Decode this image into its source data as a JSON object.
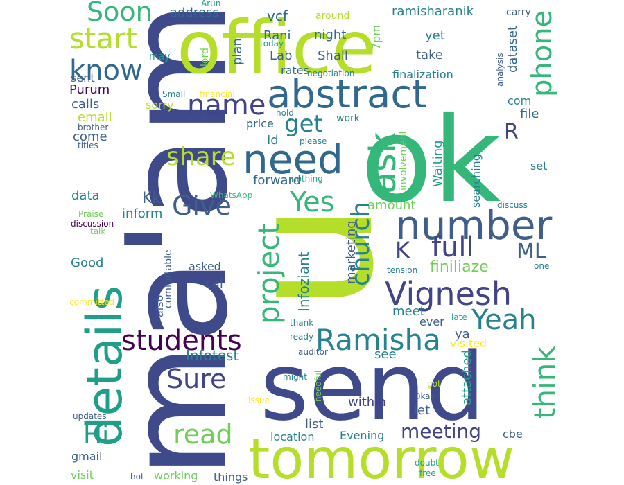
{
  "palette": {
    "navy": "#3e4a89",
    "indigo": "#414487",
    "purple": "#440154",
    "blue": "#31688e",
    "teal": "#26828e",
    "teal2": "#1f9e89",
    "green": "#35b779",
    "lgreen": "#6ece58",
    "lime": "#b5de2b",
    "yellow": "#fde725",
    "slate": "#3f5f8a"
  },
  "words": [
    {
      "text": "ma'am",
      "color": "navy"
    },
    {
      "text": "u",
      "color": "lime"
    },
    {
      "text": "ok",
      "color": "green"
    },
    {
      "text": "office",
      "color": "lime"
    },
    {
      "text": "send",
      "color": "navy"
    },
    {
      "text": "tomorrow",
      "color": "lime"
    },
    {
      "text": "details",
      "color": "teal2"
    },
    {
      "text": "abstract",
      "color": "blue"
    },
    {
      "text": "need",
      "color": "blue"
    },
    {
      "text": "number",
      "color": "slate"
    },
    {
      "text": "Vignesh",
      "color": "indigo"
    },
    {
      "text": "ask",
      "color": "green"
    },
    {
      "text": "Ramisha",
      "color": "teal"
    },
    {
      "text": "project",
      "color": "green"
    },
    {
      "text": "Soon",
      "color": "green"
    },
    {
      "text": "start",
      "color": "lime"
    },
    {
      "text": "know",
      "color": "blue"
    },
    {
      "text": "name",
      "color": "indigo"
    },
    {
      "text": "share",
      "color": "lime"
    },
    {
      "text": "Give",
      "color": "slate"
    },
    {
      "text": "Yes",
      "color": "green"
    },
    {
      "text": "church",
      "color": "teal"
    },
    {
      "text": "full",
      "color": "indigo"
    },
    {
      "text": "students",
      "color": "purple"
    },
    {
      "text": "Yeah",
      "color": "teal"
    },
    {
      "text": "phone",
      "color": "green"
    },
    {
      "text": "think",
      "color": "green"
    },
    {
      "text": "ML",
      "color": "slate"
    },
    {
      "text": "K",
      "color": "indigo"
    },
    {
      "text": "R",
      "color": "indigo"
    },
    {
      "text": "get",
      "color": "teal"
    },
    {
      "text": "Sure",
      "color": "indigo"
    },
    {
      "text": "Hi",
      "color": "teal2"
    },
    {
      "text": "read",
      "color": "lgreen"
    },
    {
      "text": "meeting",
      "color": "indigo"
    },
    {
      "text": "finiliaze",
      "color": "lgreen"
    },
    {
      "text": "Infoziant",
      "color": "teal"
    },
    {
      "text": "Infotest",
      "color": "teal"
    },
    {
      "text": "marketing",
      "color": "slate"
    },
    {
      "text": "address",
      "color": "blue"
    },
    {
      "text": "vcf",
      "color": "blue"
    },
    {
      "text": "7pm",
      "color": "lgreen"
    },
    {
      "text": "ramisharanik",
      "color": "teal"
    },
    {
      "text": "carry",
      "color": "slate"
    },
    {
      "text": "Arun",
      "color": "teal2"
    },
    {
      "text": "around",
      "color": "lime"
    },
    {
      "text": "Rani",
      "color": "blue"
    },
    {
      "text": "night",
      "color": "blue"
    },
    {
      "text": "yet",
      "color": "teal"
    },
    {
      "text": "dataset",
      "color": "blue"
    },
    {
      "text": "Lab",
      "color": "slate"
    },
    {
      "text": "Shall",
      "color": "slate"
    },
    {
      "text": "take",
      "color": "slate"
    },
    {
      "text": "may",
      "color": "teal2"
    },
    {
      "text": "lord",
      "color": "lgreen"
    },
    {
      "text": "today",
      "color": "teal2"
    },
    {
      "text": "plan",
      "color": "blue"
    },
    {
      "text": "analysis",
      "color": "slate"
    },
    {
      "text": "sent",
      "color": "slate"
    },
    {
      "text": "rates",
      "color": "blue"
    },
    {
      "text": "negotiation",
      "color": "teal"
    },
    {
      "text": "finalization",
      "color": "teal"
    },
    {
      "text": "Purum",
      "color": "purple"
    },
    {
      "text": "Small",
      "color": "teal"
    },
    {
      "text": "financial",
      "color": "yellow"
    },
    {
      "text": "calls",
      "color": "slate"
    },
    {
      "text": "sorry",
      "color": "lime"
    },
    {
      "text": "com",
      "color": "teal"
    },
    {
      "text": "email",
      "color": "lime"
    },
    {
      "text": "hold",
      "color": "teal"
    },
    {
      "text": "work",
      "color": "teal"
    },
    {
      "text": "file",
      "color": "blue"
    },
    {
      "text": "price",
      "color": "blue"
    },
    {
      "text": "brother",
      "color": "slate"
    },
    {
      "text": "come",
      "color": "slate"
    },
    {
      "text": "Id",
      "color": "teal"
    },
    {
      "text": "please",
      "color": "teal"
    },
    {
      "text": "involvement",
      "color": "lgreen"
    },
    {
      "text": "searching",
      "color": "teal"
    },
    {
      "text": "titles",
      "color": "slate"
    },
    {
      "text": "Waiting",
      "color": "teal2"
    },
    {
      "text": "set",
      "color": "teal"
    },
    {
      "text": "forward",
      "color": "blue"
    },
    {
      "text": "nothing",
      "color": "teal2"
    },
    {
      "text": "data",
      "color": "teal"
    },
    {
      "text": "Kk",
      "color": "slate"
    },
    {
      "text": "WhatsApp",
      "color": "green"
    },
    {
      "text": "amount",
      "color": "lgreen"
    },
    {
      "text": "inform",
      "color": "teal"
    },
    {
      "text": "Praise",
      "color": "lgreen"
    },
    {
      "text": "discuss",
      "color": "teal"
    },
    {
      "text": "discussion",
      "color": "purple"
    },
    {
      "text": "talk",
      "color": "lgreen"
    },
    {
      "text": "Good",
      "color": "teal"
    },
    {
      "text": "comfortable",
      "color": "slate"
    },
    {
      "text": "tension",
      "color": "teal"
    },
    {
      "text": "one",
      "color": "teal"
    },
    {
      "text": "asked",
      "color": "slate"
    },
    {
      "text": "cal",
      "color": "slate"
    },
    {
      "text": "also",
      "color": "slate"
    },
    {
      "text": "committed",
      "color": "yellow"
    },
    {
      "text": "meet",
      "color": "teal"
    },
    {
      "text": "thank",
      "color": "teal"
    },
    {
      "text": "ever",
      "color": "slate"
    },
    {
      "text": "late",
      "color": "teal2"
    },
    {
      "text": "ya",
      "color": "slate"
    },
    {
      "text": "ready",
      "color": "teal"
    },
    {
      "text": "visited",
      "color": "yellow"
    },
    {
      "text": "see",
      "color": "teal"
    },
    {
      "text": "auditor",
      "color": "slate"
    },
    {
      "text": "attached",
      "color": "teal2"
    },
    {
      "text": "might",
      "color": "teal"
    },
    {
      "text": "needful",
      "color": "lgreen"
    },
    {
      "text": "got",
      "color": "lime"
    },
    {
      "text": "within",
      "color": "indigo"
    },
    {
      "text": "Okay",
      "color": "slate"
    },
    {
      "text": "issue",
      "color": "yellow"
    },
    {
      "text": "let",
      "color": "slate"
    },
    {
      "text": "updates",
      "color": "slate"
    },
    {
      "text": "list",
      "color": "slate"
    },
    {
      "text": "location",
      "color": "teal"
    },
    {
      "text": "Evening",
      "color": "teal"
    },
    {
      "text": "cbe",
      "color": "slate"
    },
    {
      "text": "gmail",
      "color": "slate"
    },
    {
      "text": "doubt",
      "color": "teal2"
    },
    {
      "text": "visit",
      "color": "lgreen"
    },
    {
      "text": "hot",
      "color": "slate"
    },
    {
      "text": "working",
      "color": "lgreen"
    },
    {
      "text": "things",
      "color": "slate"
    },
    {
      "text": "free",
      "color": "teal2"
    }
  ]
}
